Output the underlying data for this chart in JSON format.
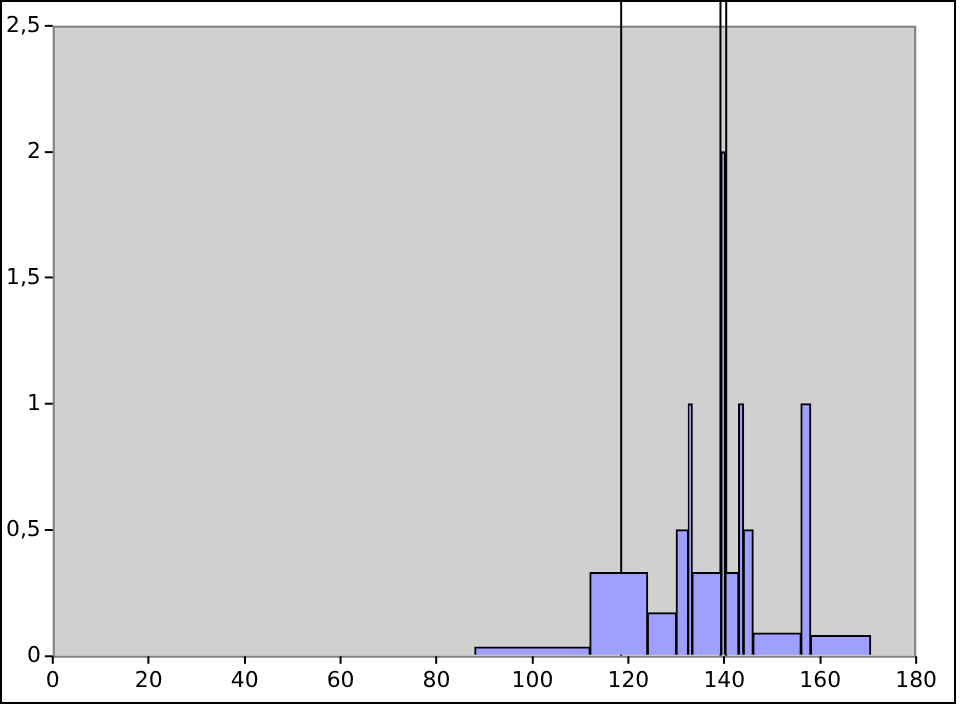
{
  "chart_data": {
    "type": "histogram",
    "bins": [
      88,
      112,
      124,
      130,
      132.5,
      133.3,
      139.4,
      140.2,
      143,
      144,
      146,
      156,
      158,
      170.5
    ],
    "values": [
      0.035,
      0.33,
      0.17,
      0.5,
      1,
      0.33,
      2,
      0.33,
      1,
      0.5,
      0.09,
      1,
      0.08
    ],
    "color": "#9f9fff",
    "xlim": [
      0,
      180
    ],
    "xticks": [
      0,
      20,
      40,
      60,
      80,
      100,
      120,
      140,
      160,
      180
    ],
    "ylim": [
      0,
      2.5
    ],
    "yticks": [
      0,
      {
        "value": 0.5,
        "label": "0,5"
      },
      1,
      {
        "value": 1.5,
        "label": "1,5"
      },
      2,
      {
        "value": 2.5,
        "label": "2,5"
      }
    ],
    "ref_lines": [
      {
        "axis": "x",
        "value": 118.5,
        "color": "#000000"
      },
      {
        "axis": "x",
        "value": 139.2,
        "color": "#000000"
      },
      {
        "axis": "x",
        "value": 140.4,
        "color": "#000000"
      }
    ],
    "grid": false,
    "legend": false
  }
}
